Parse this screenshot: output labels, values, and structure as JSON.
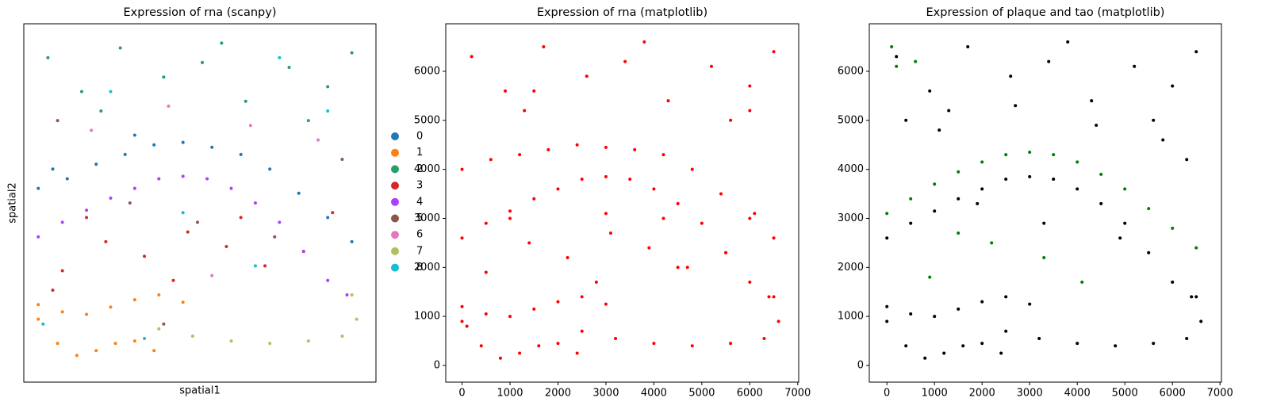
{
  "chart_data": [
    {
      "type": "scatter",
      "title": "Expression of rna (scanpy)",
      "x_label": "spatial1",
      "y_label": "spatial2",
      "xlim": [
        -300,
        7000
      ],
      "ylim": [
        -400,
        7000
      ],
      "legend": "outside-right",
      "series": [
        {
          "name": "0",
          "color": "#1f77b4",
          "x": [
            0,
            600,
            1200,
            1800,
            2400,
            3000,
            3600,
            4200,
            4800,
            5400,
            6000,
            6500,
            300,
            2000
          ],
          "values": [
            3600,
            3800,
            4100,
            4300,
            4500,
            4550,
            4450,
            4300,
            4000,
            3500,
            3000,
            2500,
            4000,
            4700
          ]
        },
        {
          "name": "1",
          "color": "#ff7f0e",
          "x": [
            0,
            500,
            1000,
            1500,
            2000,
            2500,
            3000,
            0,
            400,
            800,
            1200,
            1600,
            2000,
            2400
          ],
          "values": [
            1200,
            1050,
            1000,
            1150,
            1300,
            1400,
            1250,
            900,
            400,
            150,
            250,
            400,
            450,
            250
          ]
        },
        {
          "name": "2",
          "color": "#279e68",
          "x": [
            200,
            900,
            1700,
            2600,
            3400,
            4300,
            5200,
            6000,
            6500,
            1300,
            3800,
            5600
          ],
          "values": [
            6300,
            5600,
            6500,
            5900,
            6200,
            5400,
            6100,
            5700,
            6400,
            5200,
            6600,
            5000
          ]
        },
        {
          "name": "3",
          "color": "#d62728",
          "x": [
            500,
            1400,
            2200,
            3100,
            3900,
            4700,
            5500,
            1000,
            2800,
            4200,
            6100,
            300
          ],
          "values": [
            1900,
            2500,
            2200,
            2700,
            2400,
            2000,
            2300,
            3000,
            1700,
            3000,
            3100,
            1500
          ]
        },
        {
          "name": "4",
          "color": "#aa40fc",
          "x": [
            0,
            500,
            1000,
            1500,
            2000,
            2500,
            3000,
            3500,
            4000,
            4500,
            5000,
            5500,
            6000,
            6400
          ],
          "values": [
            2600,
            2900,
            3150,
            3400,
            3600,
            3800,
            3850,
            3800,
            3600,
            3300,
            2900,
            2300,
            1700,
            1400
          ]
        },
        {
          "name": "5",
          "color": "#8c564b",
          "x": [
            400,
            1900,
            3300,
            4900,
            6300,
            2600
          ],
          "values": [
            5000,
            3300,
            2900,
            2600,
            4200,
            800
          ]
        },
        {
          "name": "6",
          "color": "#e377c2",
          "x": [
            1100,
            2700,
            4400,
            5800,
            3600
          ],
          "values": [
            4800,
            5300,
            4900,
            4600,
            1800
          ]
        },
        {
          "name": "7",
          "color": "#b5bd61",
          "x": [
            2500,
            3200,
            4000,
            4800,
            5600,
            6300,
            6600,
            6500
          ],
          "values": [
            700,
            550,
            450,
            400,
            450,
            550,
            900,
            1400
          ]
        },
        {
          "name": "8",
          "color": "#17becf",
          "x": [
            100,
            1500,
            3000,
            4500,
            6000,
            2200,
            5000
          ],
          "values": [
            800,
            5600,
            3100,
            2000,
            5200,
            500,
            6300
          ]
        }
      ]
    },
    {
      "type": "scatter",
      "title": "Expression of rna (matplotlib)",
      "xlim": [
        -340,
        7020
      ],
      "ylim": [
        -340,
        6970
      ],
      "xticks": [
        0,
        1000,
        2000,
        3000,
        4000,
        5000,
        6000,
        7000
      ],
      "yticks": [
        0,
        1000,
        2000,
        3000,
        4000,
        5000,
        6000
      ],
      "series": [
        {
          "color": "#ff0000",
          "x": [
            0,
            500,
            1000,
            1500,
            2000,
            2500,
            3000,
            3500,
            4000,
            4500,
            5000,
            5500,
            6000,
            6400,
            0,
            500,
            1000,
            1500,
            2000,
            2500,
            3000,
            0,
            400,
            800,
            1200,
            1600,
            2000,
            2400,
            0,
            600,
            1200,
            1800,
            2400,
            3000,
            3600,
            4200,
            4800,
            5400,
            6000,
            6500,
            200,
            900,
            1700,
            2600,
            3400,
            4300,
            5200,
            6000,
            6500,
            1300,
            3800,
            5600,
            500,
            1400,
            2200,
            3100,
            3900,
            4700,
            5500,
            1000,
            2800,
            4200,
            6100,
            2500,
            3200,
            4000,
            4800,
            5600,
            6300,
            6600,
            6500,
            100,
            1500,
            3000,
            4500,
            6000
          ],
          "values": [
            2600,
            2900,
            3150,
            3400,
            3600,
            3800,
            3850,
            3800,
            3600,
            3300,
            2900,
            2300,
            1700,
            1400,
            1200,
            1050,
            1000,
            1150,
            1300,
            1400,
            1250,
            900,
            400,
            150,
            250,
            400,
            450,
            250,
            4000,
            4200,
            4300,
            4400,
            4500,
            4450,
            4400,
            4300,
            4000,
            3500,
            3000,
            2600,
            6300,
            5600,
            6500,
            5900,
            6200,
            5400,
            6100,
            5700,
            6400,
            5200,
            6600,
            5000,
            1900,
            2500,
            2200,
            2700,
            2400,
            2000,
            2300,
            3000,
            1700,
            3000,
            3100,
            700,
            550,
            450,
            400,
            450,
            550,
            900,
            1400,
            800,
            5600,
            3100,
            2000,
            5200
          ]
        }
      ]
    },
    {
      "type": "scatter",
      "title": "Expression of plaque and tao (matplotlib)",
      "xlim": [
        -370,
        7030
      ],
      "ylim": [
        -340,
        6970
      ],
      "xticks": [
        0,
        1000,
        2000,
        3000,
        4000,
        5000,
        6000,
        7000
      ],
      "yticks": [
        0,
        1000,
        2000,
        3000,
        4000,
        5000,
        6000
      ],
      "series": [
        {
          "color": "#000000",
          "x": [
            0,
            500,
            1000,
            1500,
            2000,
            2500,
            3000,
            3500,
            4000,
            4500,
            5000,
            5500,
            6000,
            6400,
            0,
            500,
            1000,
            1500,
            2000,
            2500,
            3000,
            0,
            400,
            800,
            1200,
            1600,
            2000,
            2400,
            2500,
            3200,
            4000,
            4800,
            5600,
            6300,
            6600,
            6500,
            200,
            900,
            1700,
            2600,
            3400,
            4300,
            5200,
            6000,
            6500,
            1300,
            3800,
            5600,
            400,
            1900,
            3300,
            4900,
            6300,
            1100,
            2700,
            4400,
            5800
          ],
          "values": [
            2600,
            2900,
            3150,
            3400,
            3600,
            3800,
            3850,
            3800,
            3600,
            3300,
            2900,
            2300,
            1700,
            1400,
            1200,
            1050,
            1000,
            1150,
            1300,
            1400,
            1250,
            900,
            400,
            150,
            250,
            400,
            450,
            250,
            700,
            550,
            450,
            400,
            450,
            550,
            900,
            1400,
            6300,
            5600,
            6500,
            5900,
            6200,
            5400,
            6100,
            5700,
            6400,
            5200,
            6600,
            5000,
            5000,
            3300,
            2900,
            2600,
            4200,
            4800,
            5300,
            4900,
            4600
          ]
        },
        {
          "color": "#008000",
          "x": [
            0,
            500,
            1000,
            1500,
            2000,
            2500,
            3000,
            3500,
            4000,
            4500,
            5000,
            5500,
            6000,
            6500,
            200,
            1500,
            3300,
            100,
            900,
            2200,
            4100,
            600
          ],
          "values": [
            3100,
            3400,
            3700,
            3950,
            4150,
            4300,
            4350,
            4300,
            4150,
            3900,
            3600,
            3200,
            2800,
            2400,
            6100,
            2700,
            2200,
            6500,
            1800,
            2500,
            1700,
            6200
          ]
        }
      ]
    }
  ]
}
